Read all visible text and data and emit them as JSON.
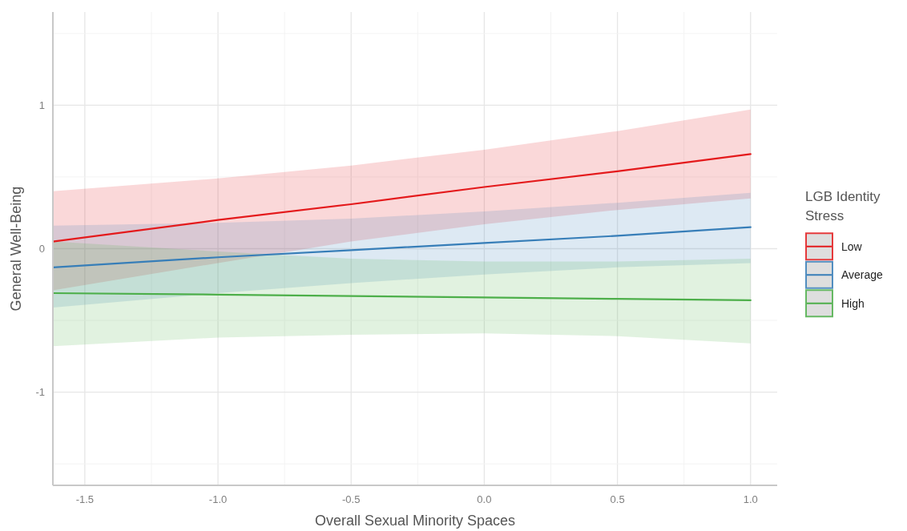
{
  "chart_data": {
    "type": "line",
    "xlabel": "Overall Sexual Minority Spaces",
    "ylabel": "General Well-Being",
    "legend_title": "LGB Identity Stress",
    "x": [
      -1.62,
      -1.0,
      -0.5,
      0,
      0.5,
      1.0
    ],
    "series": [
      {
        "name": "Low",
        "color": "#e41a1c",
        "values": [
          0.05,
          0.2,
          0.31,
          0.43,
          0.54,
          0.66
        ],
        "lower": [
          -0.29,
          -0.1,
          0.05,
          0.17,
          0.27,
          0.35
        ],
        "upper": [
          0.4,
          0.49,
          0.58,
          0.69,
          0.82,
          0.97
        ]
      },
      {
        "name": "Average",
        "color": "#377eb8",
        "values": [
          -0.13,
          -0.06,
          -0.01,
          0.04,
          0.09,
          0.15
        ],
        "lower": [
          -0.41,
          -0.31,
          -0.24,
          -0.18,
          -0.13,
          -0.1
        ],
        "upper": [
          0.16,
          0.18,
          0.21,
          0.26,
          0.32,
          0.39
        ]
      },
      {
        "name": "High",
        "color": "#4daf4a",
        "values": [
          -0.31,
          -0.32,
          -0.33,
          -0.34,
          -0.35,
          -0.36
        ],
        "lower": [
          -0.68,
          -0.62,
          -0.6,
          -0.59,
          -0.61,
          -0.66
        ],
        "upper": [
          0.05,
          -0.02,
          -0.07,
          -0.09,
          -0.09,
          -0.07
        ]
      }
    ],
    "xlim": [
      -1.62,
      1.1
    ],
    "ylim": [
      -1.65,
      1.65
    ],
    "xticks": [
      -1.5,
      {
        "value": -1.25,
        "label": null
      },
      {
        "value": -1,
        "label": "-1.0"
      },
      {
        "value": -0.75,
        "label": null
      },
      -0.5,
      {
        "value": -0.25,
        "label": null
      },
      {
        "value": 0,
        "label": "0.0"
      },
      {
        "value": 0.25,
        "label": null
      },
      0.5,
      {
        "value": 0.75,
        "label": null
      },
      {
        "value": 1,
        "label": "1.0"
      }
    ],
    "yticks": [
      {
        "value": -1.5,
        "label": null
      },
      -1,
      {
        "value": -0.5,
        "label": null
      },
      0,
      {
        "value": 0.5,
        "label": null
      },
      1,
      {
        "value": 1.5,
        "label": null
      }
    ],
    "grid": true,
    "legend": "right"
  }
}
